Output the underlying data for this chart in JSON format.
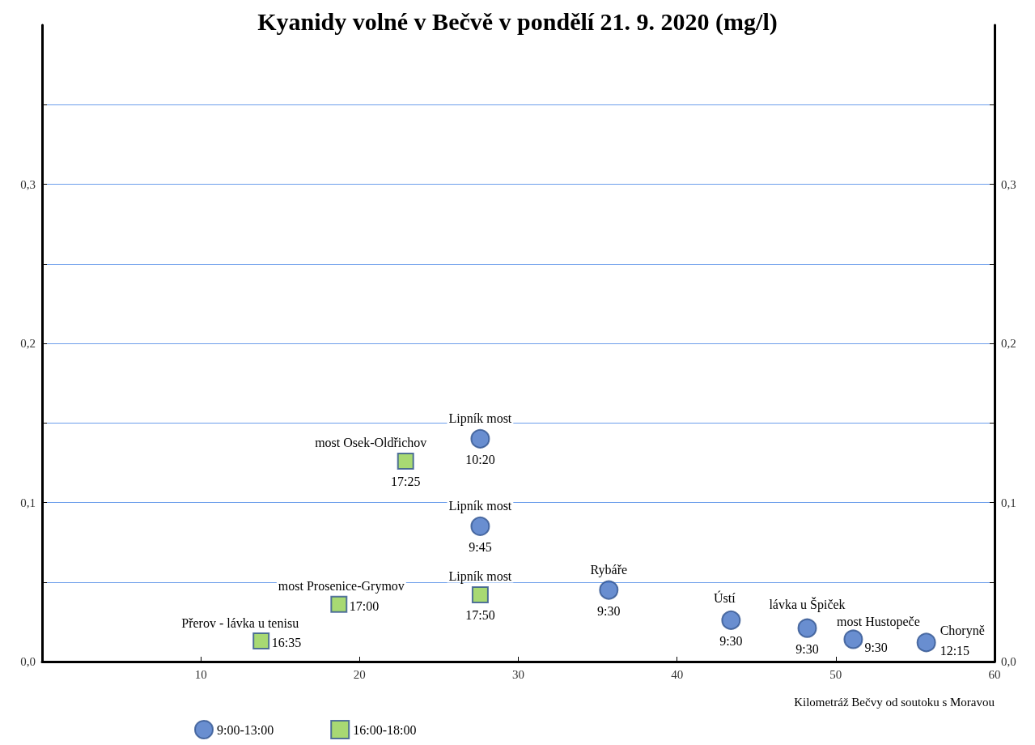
{
  "chart_data": {
    "type": "scatter",
    "title": "Kyanidy volné v Bečvě v pondělí 21. 9. 2020 (mg/l)",
    "xlabel": "Kilometráž Bečvy od soutoku s Moravou",
    "xlim": [
      0,
      60
    ],
    "xticks": [
      10,
      20,
      30,
      40,
      50,
      60
    ],
    "ylim": [
      0,
      0.4
    ],
    "yticks": [
      {
        "value": 0,
        "label": "0,0"
      },
      {
        "value": 0.05,
        "label": null
      },
      {
        "value": 0.1,
        "label": "0,1"
      },
      {
        "value": 0.15,
        "label": null
      },
      {
        "value": 0.2,
        "label": "0,2"
      },
      {
        "value": 0.25,
        "label": null
      },
      {
        "value": 0.3,
        "label": "0,3"
      },
      {
        "value": 0.35,
        "label": null
      }
    ],
    "y2lim": [
      0,
      0.4
    ],
    "y2ticks": [
      {
        "value": 0,
        "label": "0,0"
      },
      {
        "value": 0.05,
        "label": null
      },
      {
        "value": 0.1,
        "label": "0,1"
      },
      {
        "value": 0.15,
        "label": null
      },
      {
        "value": 0.2,
        "label": "0,2"
      },
      {
        "value": 0.25,
        "label": null
      },
      {
        "value": 0.3,
        "label": "0,3"
      },
      {
        "value": 0.35,
        "label": null
      }
    ],
    "grid": "y",
    "legend": "bottom left",
    "series": [
      {
        "name": "9:00-13:00",
        "color": "#4472c4",
        "marker": "circle",
        "x": [
          27.6,
          27.6,
          35.7,
          43.4,
          48.2,
          51.1,
          55.7
        ],
        "values": [
          0.14,
          0.085,
          0.045,
          0.026,
          0.021,
          0.014,
          0.012
        ]
      },
      {
        "name": "16:00-18:00",
        "color": "#92d050",
        "marker": "square",
        "x": [
          22.9,
          27.6,
          18.7,
          13.8
        ],
        "values": [
          0.126,
          0.042,
          0.036,
          0.013
        ]
      }
    ],
    "annotations": [
      {
        "text": "Lipník most",
        "x": 27.6,
        "y": 0.14
      },
      {
        "text": "10:20",
        "x": 27.6,
        "y": 0.14
      },
      {
        "text": "Lipník most",
        "x": 27.6,
        "y": 0.085
      },
      {
        "text": "9:45",
        "x": 27.6,
        "y": 0.085
      },
      {
        "text": "Rybáře",
        "x": 35.7,
        "y": 0.045
      },
      {
        "text": "9:30",
        "x": 35.7,
        "y": 0.045
      },
      {
        "text": "Ústí",
        "x": 43.4,
        "y": 0.026
      },
      {
        "text": "9:30",
        "x": 43.4,
        "y": 0.026
      },
      {
        "text": "lávka u Špiček",
        "x": 48.2,
        "y": 0.021
      },
      {
        "text": "9:30",
        "x": 48.2,
        "y": 0.021
      },
      {
        "text": "most Hustopeče",
        "x": 51.1,
        "y": 0.014
      },
      {
        "text": "9:30",
        "x": 51.1,
        "y": 0.014
      },
      {
        "text": "Choryně",
        "x": 55.7,
        "y": 0.012
      },
      {
        "text": "12:15",
        "x": 55.7,
        "y": 0.012
      },
      {
        "text": "most Osek-Oldřichov",
        "x": 22.9,
        "y": 0.126
      },
      {
        "text": "17:25",
        "x": 22.9,
        "y": 0.126
      },
      {
        "text": "Lipník most",
        "x": 27.6,
        "y": 0.042
      },
      {
        "text": "17:50",
        "x": 27.6,
        "y": 0.042
      },
      {
        "text": "most Prosenice-Grymov",
        "x": 18.7,
        "y": 0.036
      },
      {
        "text": "17:00",
        "x": 18.7,
        "y": 0.036
      },
      {
        "text": "Přerov - lávka u tenisu",
        "x": 13.8,
        "y": 0.013
      },
      {
        "text": "16:35",
        "x": 13.8,
        "y": 0.013
      }
    ]
  }
}
